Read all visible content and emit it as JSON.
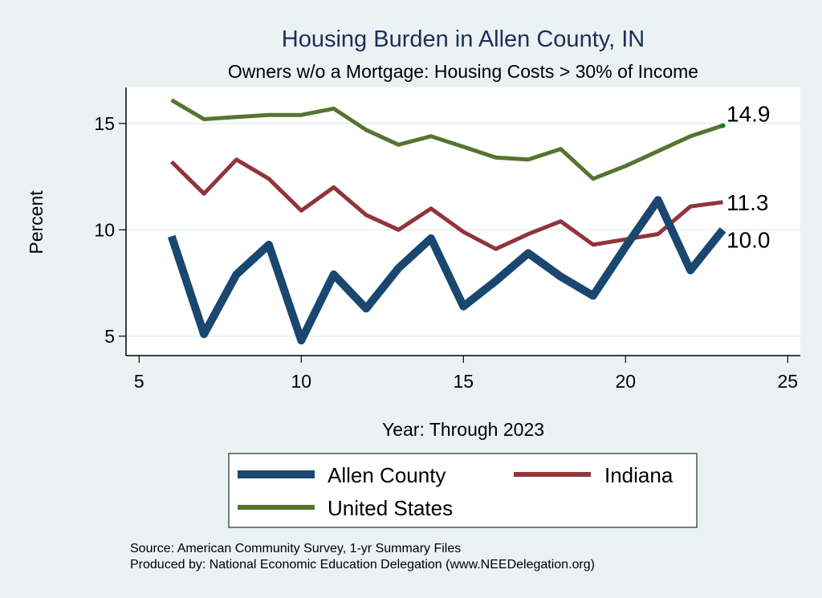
{
  "chart_data": {
    "type": "line",
    "title": "Housing Burden in Allen County, IN",
    "subtitle": "Owners w/o a Mortgage: Housing Costs > 30% of Income",
    "xlabel": "Year: Through 2023",
    "ylabel": "Percent",
    "xlim": [
      5,
      25
    ],
    "ylim": [
      4.2,
      16.6
    ],
    "xticks": [
      5,
      10,
      15,
      20,
      25
    ],
    "yticks": [
      5,
      10,
      15
    ],
    "grid": true,
    "legend_position": "bottom",
    "x": [
      6,
      7,
      8,
      9,
      10,
      11,
      12,
      13,
      14,
      15,
      16,
      17,
      18,
      19,
      20,
      21,
      22,
      23
    ],
    "series": [
      {
        "name": "Allen County",
        "color": "#1a476f",
        "values": [
          9.7,
          5.1,
          7.9,
          9.3,
          4.8,
          7.9,
          6.3,
          8.2,
          9.6,
          6.4,
          7.6,
          8.9,
          7.8,
          6.9,
          9.2,
          11.4,
          8.1,
          10.0
        ],
        "end_label": "10.0"
      },
      {
        "name": "Indiana",
        "color": "#90353b",
        "values": [
          13.2,
          11.7,
          13.3,
          12.4,
          10.9,
          12.0,
          10.7,
          10.0,
          11.0,
          9.9,
          9.1,
          9.8,
          10.4,
          9.3,
          9.55,
          9.8,
          11.1,
          11.3
        ],
        "end_label": "11.3"
      },
      {
        "name": "United States",
        "color": "#55752f",
        "values": [
          16.1,
          15.2,
          15.3,
          15.4,
          15.4,
          15.7,
          14.7,
          14.0,
          14.4,
          13.9,
          13.4,
          13.3,
          13.8,
          12.4,
          13.0,
          13.7,
          14.4,
          14.9
        ],
        "end_label": "14.9"
      }
    ],
    "notes": [
      "Source: American Community Survey, 1-yr Summary Files",
      "Produced by: National Economic Education Delegation (www.NEEDelegation.org)"
    ]
  }
}
